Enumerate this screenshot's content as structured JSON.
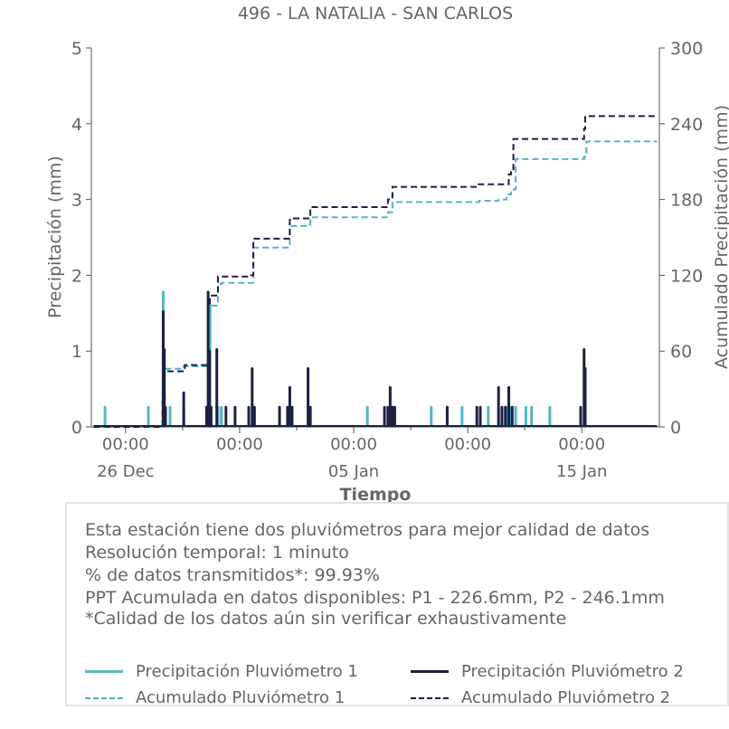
{
  "chart_data": {
    "type": "line",
    "title": "496 - LA NATALIA - SAN CARLOS",
    "xlabel": "Tiempo",
    "ylabel": "Precipitación (mm)",
    "ylabel_right": "Acumulado Precipitación (mm)",
    "x_range_days": [
      -4.5,
      20.4
    ],
    "ylim": [
      0,
      5
    ],
    "ylim_right": [
      0,
      300
    ],
    "y_ticks": [
      0,
      1,
      2,
      3,
      4,
      5
    ],
    "y_ticks_right": [
      0,
      60,
      120,
      180,
      240,
      300
    ],
    "x_ticks": [
      {
        "day": -3,
        "label": "00:00",
        "sublabel": "26 Dec"
      },
      {
        "day": 2,
        "label": "00:00",
        "sublabel": ""
      },
      {
        "day": 7,
        "label": "00:00",
        "sublabel": "05 Jan"
      },
      {
        "day": 12,
        "label": "00:00",
        "sublabel": ""
      },
      {
        "day": 17,
        "label": "00:00",
        "sublabel": "15 Jan"
      }
    ],
    "x_minor_ticks": [
      -0.5,
      4.5,
      9.5,
      14.5
    ],
    "colors": {
      "p1": "#56b4c2",
      "p2": "#1c2041"
    },
    "series": [
      {
        "name": "Precipitación Pluviómetro 1",
        "style": "solid",
        "axis": "left",
        "spikes": [
          [
            -3.9,
            0.26
          ],
          [
            -2.0,
            0.26
          ],
          [
            -1.35,
            1.78
          ],
          [
            -1.3,
            0.4
          ],
          [
            -1.05,
            0.26
          ],
          [
            -0.45,
            0.26
          ],
          [
            0.6,
            0.26
          ],
          [
            0.7,
            1.6
          ],
          [
            1.05,
            0.26
          ],
          [
            1.2,
            0.26
          ],
          [
            7.6,
            0.26
          ],
          [
            10.4,
            0.26
          ],
          [
            11.75,
            0.26
          ],
          [
            12.9,
            0.26
          ],
          [
            13.7,
            0.26
          ],
          [
            13.85,
            0.26
          ],
          [
            14.1,
            0.26
          ],
          [
            14.55,
            0.26
          ],
          [
            14.8,
            0.26
          ],
          [
            15.6,
            0.26
          ]
        ]
      },
      {
        "name": "Precipitación Pluviómetro 2",
        "style": "solid",
        "axis": "left",
        "spikes": [
          [
            -1.35,
            1.52
          ],
          [
            -1.3,
            1.02
          ],
          [
            -1.25,
            0.26
          ],
          [
            -0.45,
            0.45
          ],
          [
            0.55,
            0.26
          ],
          [
            0.62,
            1.78
          ],
          [
            0.68,
            1.0
          ],
          [
            0.75,
            0.26
          ],
          [
            1.0,
            1.02
          ],
          [
            1.4,
            0.26
          ],
          [
            1.8,
            0.26
          ],
          [
            2.4,
            0.26
          ],
          [
            2.55,
            0.77
          ],
          [
            2.65,
            0.26
          ],
          [
            3.75,
            0.26
          ],
          [
            4.1,
            0.26
          ],
          [
            4.2,
            0.52
          ],
          [
            4.3,
            0.26
          ],
          [
            5.0,
            0.77
          ],
          [
            5.1,
            0.26
          ],
          [
            8.35,
            0.26
          ],
          [
            8.5,
            0.26
          ],
          [
            8.6,
            0.52
          ],
          [
            8.7,
            0.26
          ],
          [
            8.8,
            0.26
          ],
          [
            11.1,
            0.26
          ],
          [
            12.4,
            0.26
          ],
          [
            12.55,
            0.26
          ],
          [
            13.35,
            0.52
          ],
          [
            13.5,
            0.26
          ],
          [
            13.65,
            0.26
          ],
          [
            13.8,
            0.52
          ],
          [
            13.95,
            0.26
          ],
          [
            16.95,
            0.26
          ],
          [
            17.1,
            1.02
          ],
          [
            17.15,
            0.77
          ]
        ]
      },
      {
        "name": "Acumulado Pluviómetro 1",
        "style": "dashed",
        "axis": "right",
        "steps": [
          [
            -4.4,
            0
          ],
          [
            -1.45,
            0
          ],
          [
            -1.38,
            26
          ],
          [
            -1.3,
            46
          ],
          [
            -1.0,
            46
          ],
          [
            -0.45,
            48
          ],
          [
            0.6,
            48
          ],
          [
            0.65,
            62
          ],
          [
            0.72,
            96
          ],
          [
            1.0,
            98
          ],
          [
            1.05,
            113
          ],
          [
            1.2,
            114
          ],
          [
            2.5,
            114
          ],
          [
            2.6,
            142
          ],
          [
            4.1,
            142
          ],
          [
            4.2,
            159
          ],
          [
            5.0,
            159
          ],
          [
            5.1,
            166
          ],
          [
            8.3,
            166
          ],
          [
            8.5,
            170
          ],
          [
            8.7,
            178
          ],
          [
            11.6,
            178
          ],
          [
            12.5,
            179
          ],
          [
            13.35,
            180
          ],
          [
            13.7,
            184
          ],
          [
            13.9,
            188
          ],
          [
            14.1,
            212
          ],
          [
            16.0,
            212
          ],
          [
            17.1,
            214
          ],
          [
            17.2,
            226
          ],
          [
            20.3,
            226
          ]
        ]
      },
      {
        "name": "Acumulado Pluviómetro 2",
        "style": "dashed",
        "axis": "right",
        "steps": [
          [
            -4.4,
            0
          ],
          [
            -1.45,
            0
          ],
          [
            -1.38,
            20
          ],
          [
            -1.3,
            44
          ],
          [
            -0.45,
            44
          ],
          [
            -0.4,
            49
          ],
          [
            0.55,
            49
          ],
          [
            0.62,
            76
          ],
          [
            0.7,
            104
          ],
          [
            1.0,
            104
          ],
          [
            1.05,
            119
          ],
          [
            2.5,
            120
          ],
          [
            2.6,
            149
          ],
          [
            4.1,
            149
          ],
          [
            4.2,
            165
          ],
          [
            5.0,
            165
          ],
          [
            5.1,
            174
          ],
          [
            8.3,
            174
          ],
          [
            8.5,
            180
          ],
          [
            8.7,
            190
          ],
          [
            11.1,
            190
          ],
          [
            12.4,
            192
          ],
          [
            13.35,
            192
          ],
          [
            13.8,
            200
          ],
          [
            13.9,
            202
          ],
          [
            14.0,
            228
          ],
          [
            16.9,
            228
          ],
          [
            17.1,
            236
          ],
          [
            17.15,
            246
          ],
          [
            20.3,
            246
          ]
        ]
      }
    ]
  },
  "info": {
    "lines": [
      "Esta estación tiene dos pluviómetros para mejor calidad de datos",
      "Resolución temporal: 1 minuto",
      "% de datos transmitidos*: 99.93%",
      "PPT Acumulada en datos disponibles: P1 - 226.6mm, P2 - 246.1mm",
      "*Calidad de los datos aún sin verificar exhaustivamente"
    ]
  },
  "legend": {
    "p1_precip": "Precipitación Pluviómetro 1",
    "p2_precip": "Precipitación Pluviómetro 2",
    "p1_accum": "Acumulado Pluviómetro 1",
    "p2_accum": "Acumulado Pluviómetro 2"
  }
}
